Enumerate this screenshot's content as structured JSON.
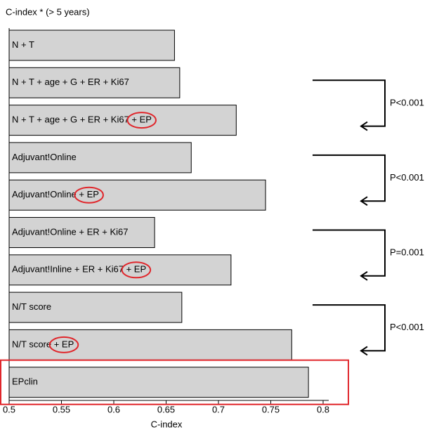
{
  "chart_data": {
    "type": "bar",
    "orientation": "horizontal",
    "title": "C-index * (> 5 years)",
    "x_label": "C-index",
    "categories": [
      "N + T",
      "N + T + age + G + ER + Ki67",
      "N + T + age + G + ER + Ki67 + EP",
      "Adjuvant!Online",
      "Adjuvant!Online + EP",
      "Adjuvant!Online + ER + Ki67",
      "Adjuvant!Inline + ER + Ki67 + EP",
      "N/T score",
      "N/T score + EP",
      "EPclin"
    ],
    "values": [
      0.658,
      0.663,
      0.717,
      0.674,
      0.745,
      0.639,
      0.712,
      0.665,
      0.77,
      0.786
    ],
    "highlighted": [
      false,
      false,
      true,
      false,
      true,
      false,
      true,
      false,
      true,
      false
    ],
    "color": "#d3d3d3",
    "highlight_color": "#e0262b",
    "xlim": [
      0.5,
      0.8
    ],
    "xticks": [
      0.5,
      0.55,
      0.6,
      0.65,
      0.7,
      0.75,
      0.8
    ],
    "annotations": [
      "P<0.001",
      "P<0.001",
      "P=0.001",
      "P<0.001"
    ]
  }
}
